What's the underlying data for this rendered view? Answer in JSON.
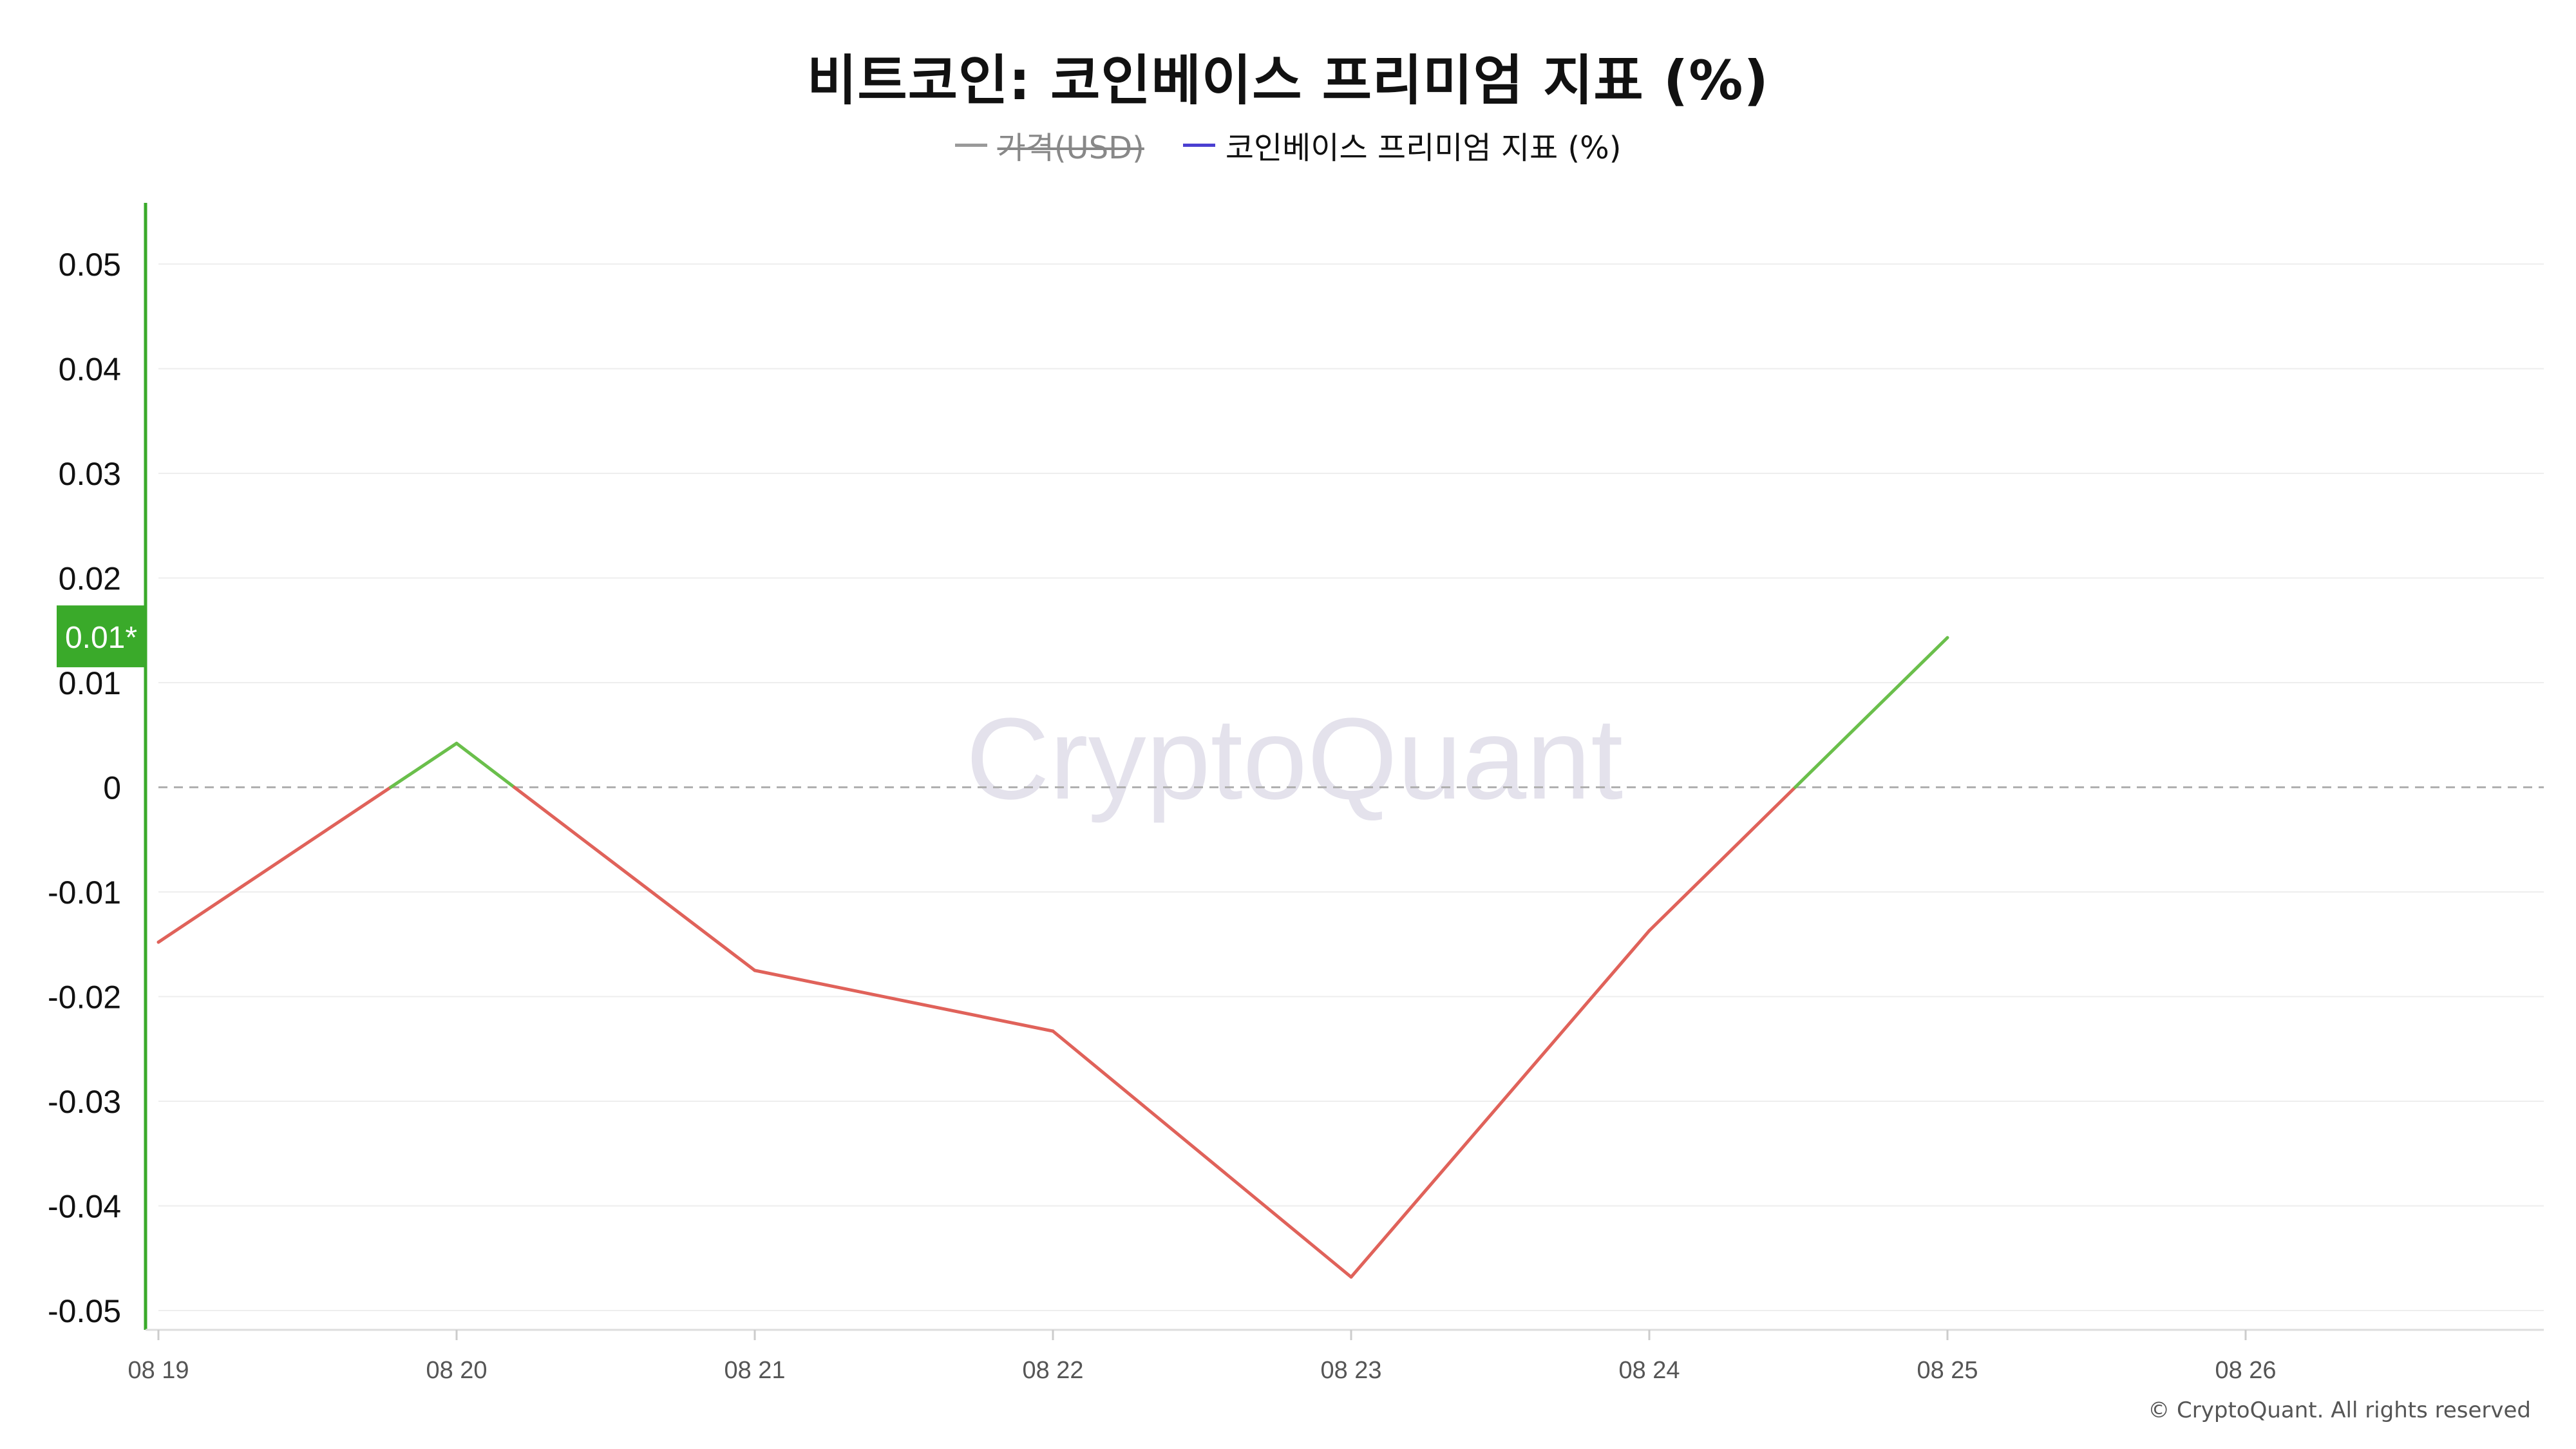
{
  "title": "비트코인: 코인베이스 프리미엄 지표 (%)",
  "legend": [
    {
      "label": "가격(USD)",
      "color": "#9a9a9a",
      "hidden": true
    },
    {
      "label": "코인베이스 프리미엄 지표 (%)",
      "color": "#4b3fd1",
      "hidden": false
    }
  ],
  "watermark": "CryptoQuant",
  "copyright": "© CryptoQuant. All rights reserved",
  "current_value_label": "0.01*",
  "colors": {
    "positive": "#6abf4b",
    "negative": "#e0625a",
    "axis_highlight": "#3aaa2a",
    "grid": "#eeeeee",
    "zero_line": "#b0b0b0"
  },
  "chart_data": {
    "type": "line",
    "title": "비트코인: 코인베이스 프리미엄 지표 (%)",
    "xlabel": "",
    "ylabel": "",
    "categories": [
      "08 19",
      "08 20",
      "08 21",
      "08 22",
      "08 23",
      "08 24",
      "08 25",
      "08 26"
    ],
    "ylim": [
      -0.052,
      0.056
    ],
    "y_ticks": [
      "0.05",
      "0.04",
      "0.03",
      "0.02",
      "0.01",
      "0",
      "-0.01",
      "-0.02",
      "-0.03",
      "-0.04",
      "-0.05"
    ],
    "grid": true,
    "legend_position": "top-center",
    "series": [
      {
        "name": "코인베이스 프리미엄 지표 (%)",
        "values": [
          -0.0148,
          0.0042,
          -0.0175,
          -0.0233,
          -0.0468,
          -0.0137,
          0.0143,
          null
        ]
      }
    ]
  }
}
